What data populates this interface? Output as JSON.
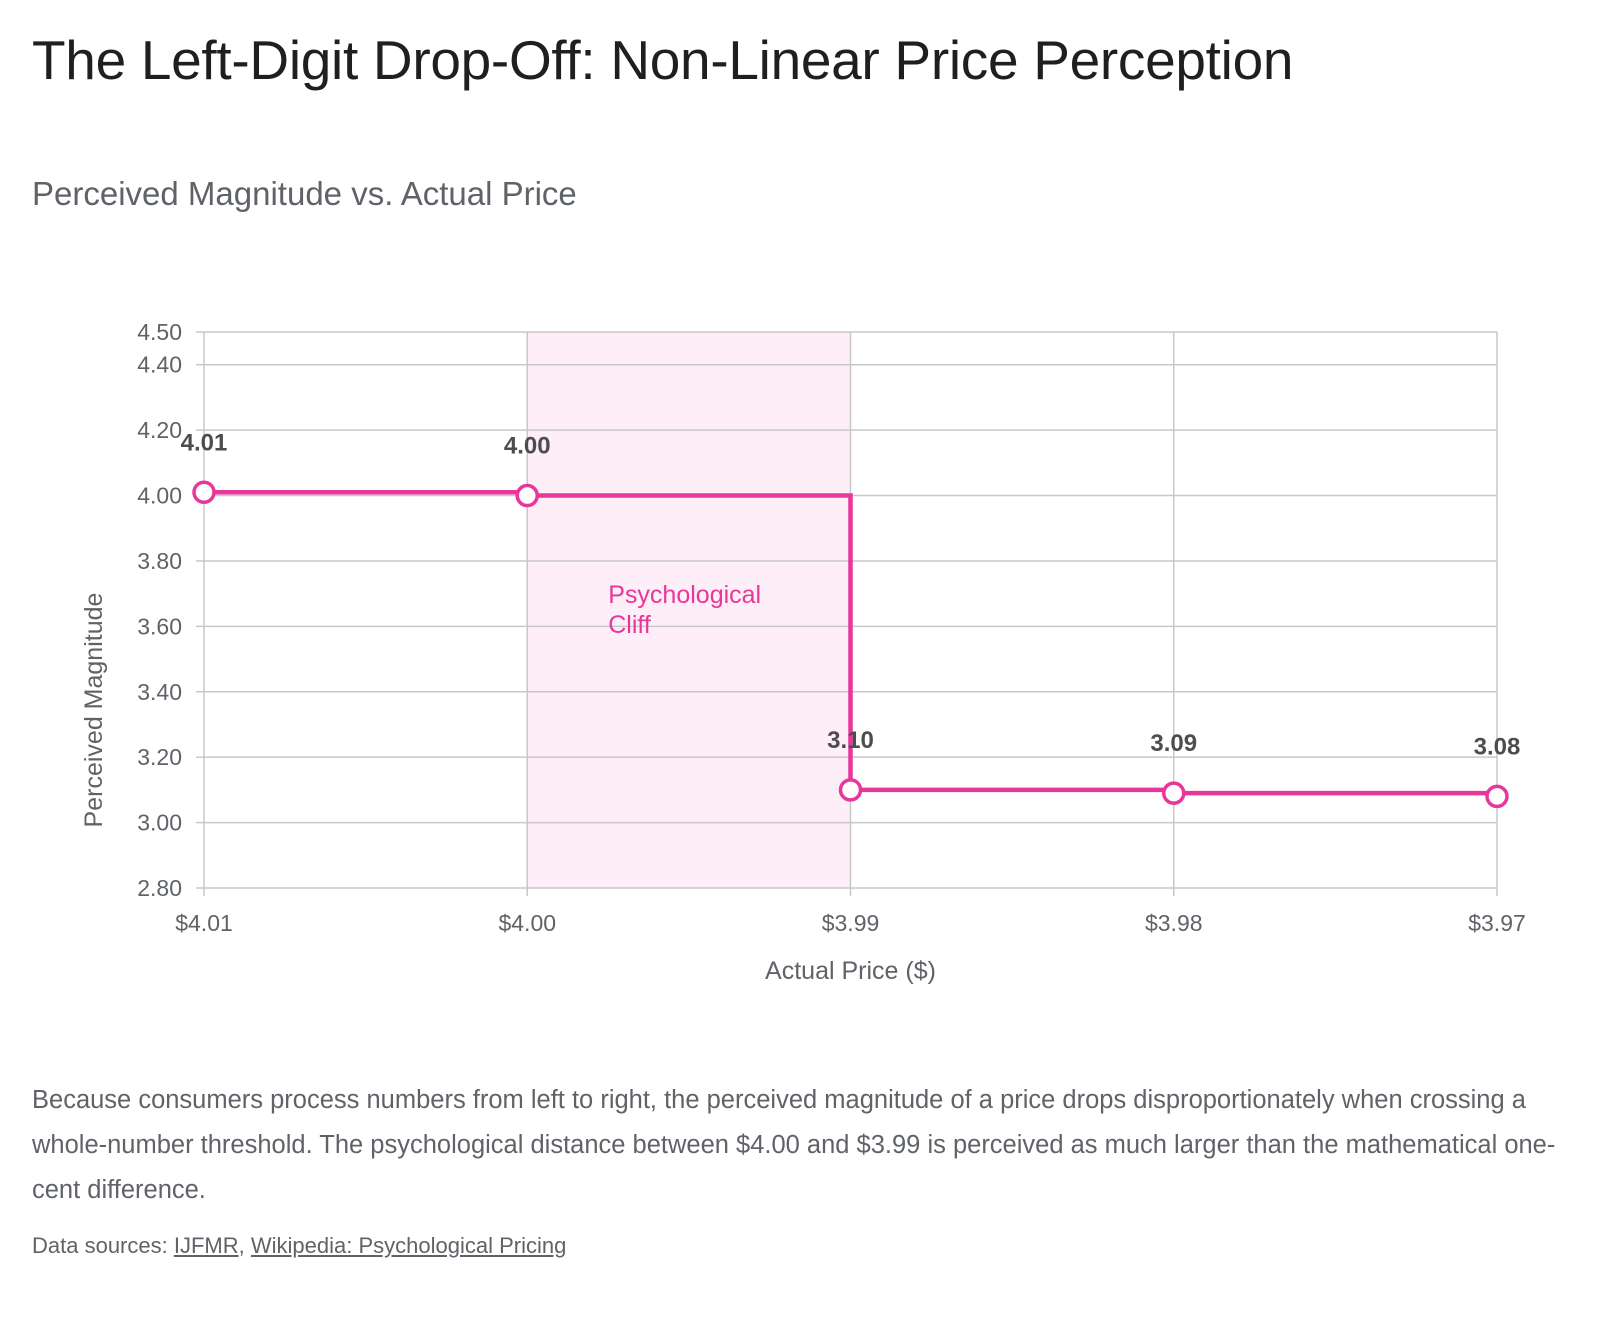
{
  "title": "The Left-Digit Drop-Off: Non-Linear Price Perception",
  "subtitle": "Perceived Magnitude vs. Actual Price",
  "description": "Because consumers process numbers from left to right, the perceived magnitude of a price drops disproportionately when crossing a whole-number threshold. The psychological distance between $4.00 and $3.99 is perceived as much larger than the mathematical one-cent difference.",
  "sources": {
    "prefix": "Data sources: ",
    "separator": ", ",
    "links": [
      "IJFMR",
      "Wikipedia: Psychological Pricing"
    ]
  },
  "colors": {
    "line": "#e8379a",
    "highlight": "#fdeef7",
    "grid": "#c8c8c8",
    "axis_text": "#5f6368",
    "data_label": "#4d4d4d"
  },
  "chart_data": {
    "type": "line",
    "line_style": "step",
    "categories": [
      "$4.01",
      "$4.00",
      "$3.99",
      "$3.98",
      "$3.97"
    ],
    "values": [
      4.01,
      4.0,
      3.1,
      3.09,
      3.08
    ],
    "data_labels": [
      "4.01",
      "4.00",
      "3.10",
      "3.09",
      "3.08"
    ],
    "xlabel": "Actual Price ($)",
    "ylabel": "Perceived Magnitude",
    "ylim": [
      2.8,
      4.5
    ],
    "yticks": [
      2.8,
      3.0,
      3.2,
      3.4,
      3.6,
      3.8,
      4.0,
      4.2,
      4.4,
      4.5
    ],
    "ytick_labels": [
      "2.80",
      "3.00",
      "3.20",
      "3.40",
      "3.60",
      "3.80",
      "4.00",
      "4.20",
      "4.40",
      "4.50"
    ],
    "grid": true,
    "highlight_region": {
      "from_category": "$4.00",
      "to_category": "$3.99",
      "label_lines": [
        "Psychological",
        "Cliff"
      ]
    }
  }
}
